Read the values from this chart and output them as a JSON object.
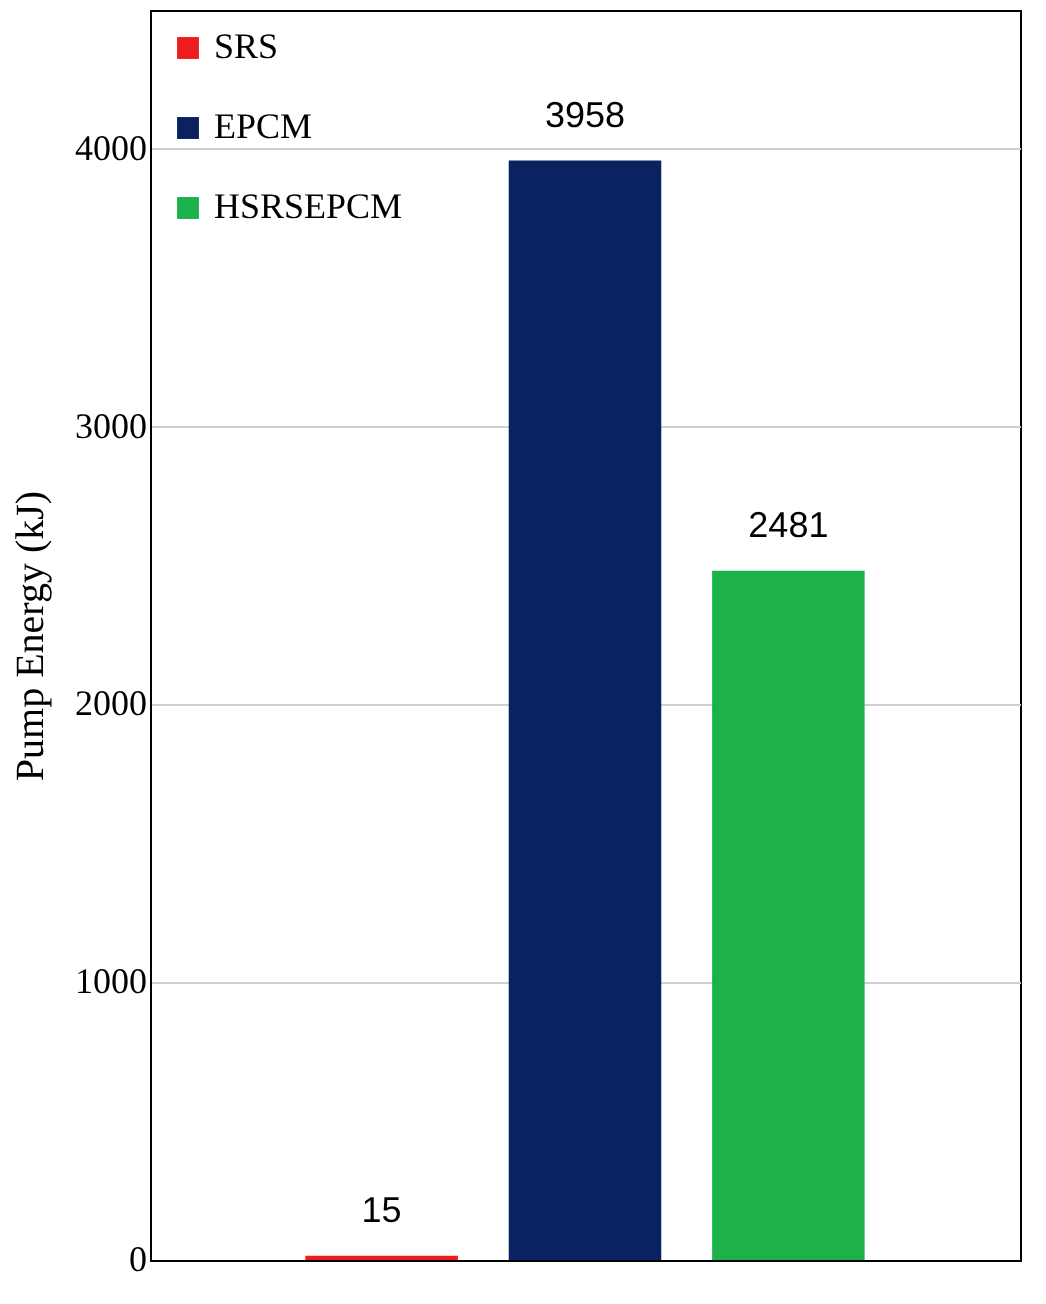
{
  "chart_data": {
    "type": "bar",
    "ylabel": "Pump Energy (kJ)",
    "categories": [
      null
    ],
    "series": [
      {
        "name": "SRS",
        "color": "#ee1c1c",
        "values": [
          15
        ]
      },
      {
        "name": "EPCM",
        "color": "#0b2260",
        "values": [
          3958
        ]
      },
      {
        "name": "HSRSEPCM",
        "color": "#1db14b",
        "values": [
          2481
        ]
      }
    ],
    "ylim": [
      0,
      4500
    ],
    "yticks": [
      0,
      1000,
      2000,
      3000,
      4000
    ],
    "grid": "y",
    "legend": "top left",
    "data_labels": true
  }
}
